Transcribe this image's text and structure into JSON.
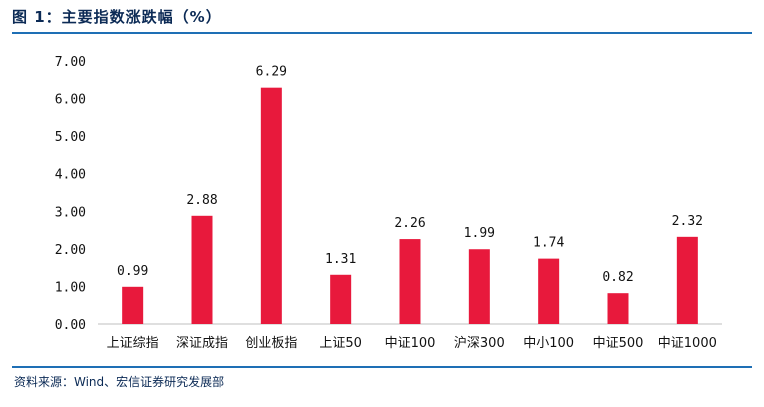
{
  "title": "图 1：主要指数涨跌幅（%）",
  "source": "资料来源：Wind、宏信证券研究发展部",
  "colors": {
    "bar": "#e8193c",
    "rule": "#1e6fb5",
    "title": "#0b2a55",
    "axis": "#bfbfbf"
  },
  "chart_data": {
    "type": "bar",
    "title": "主要指数涨跌幅（%）",
    "xlabel": "",
    "ylabel": "",
    "ylim": [
      0,
      7
    ],
    "yticks": [
      "0.00",
      "1.00",
      "2.00",
      "3.00",
      "4.00",
      "5.00",
      "6.00",
      "7.00"
    ],
    "grid": false,
    "legend": "none",
    "categories": [
      "上证综指",
      "深证成指",
      "创业板指",
      "上证50",
      "中证100",
      "沪深300",
      "中小100",
      "中证500",
      "中证1000"
    ],
    "values": [
      0.99,
      2.88,
      6.29,
      1.31,
      2.26,
      1.99,
      1.74,
      0.82,
      2.32
    ],
    "data_labels": [
      "0.99",
      "2.88",
      "6.29",
      "1.31",
      "2.26",
      "1.99",
      "1.74",
      "0.82",
      "2.32"
    ]
  }
}
